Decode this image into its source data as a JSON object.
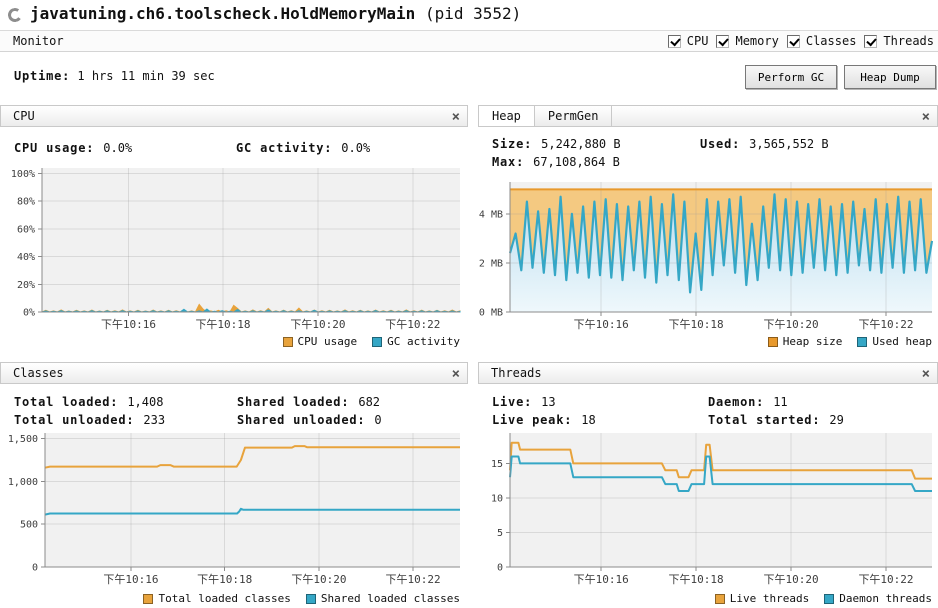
{
  "window": {
    "title": "javatuning.ch6.toolscheck.HoldMemoryMain",
    "pid": " (pid 3552)"
  },
  "ui": {
    "close_glyph": "×"
  },
  "monitor_tab": {
    "label": "Monitor",
    "checkboxes": [
      {
        "label": "CPU",
        "checked": true
      },
      {
        "label": "Memory",
        "checked": true
      },
      {
        "label": "Classes",
        "checked": true
      },
      {
        "label": "Threads",
        "checked": true
      }
    ]
  },
  "toolbar": {
    "uptime_label": "Uptime:",
    "uptime_value": " 1 hrs 11 min 39 sec",
    "perform_gc_label": "Perform GC",
    "heap_dump_label": "Heap Dump"
  },
  "panels": {
    "cpu": {
      "title": "CPU",
      "stats": [
        {
          "label": "CPU usage:",
          "value": "0.0%"
        },
        {
          "label": "GC activity:",
          "value": "0.0%"
        }
      ],
      "legend": [
        {
          "label": "CPU usage",
          "color": "#e8a33c"
        },
        {
          "label": "GC activity",
          "color": "#35a7c6"
        }
      ]
    },
    "heap": {
      "tabs": [
        "Heap",
        "PermGen"
      ],
      "active_tab": "Heap",
      "stats": [
        {
          "label": "Size:",
          "value": "5,242,880 B"
        },
        {
          "label": "Used:",
          "value": "3,565,552 B"
        },
        {
          "label": "Max:",
          "value": "67,108,864 B"
        }
      ],
      "legend": [
        {
          "label": "Heap size",
          "color": "#e8a33c"
        },
        {
          "label": "Used heap",
          "color": "#35a7c6"
        }
      ]
    },
    "classes": {
      "title": "Classes",
      "stats": [
        {
          "label": "Total loaded:",
          "value": "1,408"
        },
        {
          "label": "Shared loaded:",
          "value": "682"
        },
        {
          "label": "Total unloaded:",
          "value": "233"
        },
        {
          "label": "Shared unloaded:",
          "value": "0"
        }
      ],
      "legend": [
        {
          "label": "Total loaded classes",
          "color": "#e8a33c"
        },
        {
          "label": "Shared loaded classes",
          "color": "#35a7c6"
        }
      ]
    },
    "threads": {
      "title": "Threads",
      "stats": [
        {
          "label": "Live:",
          "value": "13"
        },
        {
          "label": "Daemon:",
          "value": "11"
        },
        {
          "label": "Live peak:",
          "value": "18"
        },
        {
          "label": "Total started:",
          "value": "29"
        }
      ],
      "legend": [
        {
          "label": "Live threads",
          "color": "#e8a33c"
        },
        {
          "label": "Daemon threads",
          "color": "#35a7c6"
        }
      ]
    }
  },
  "chart_data": [
    {
      "id": "cpu",
      "type": "area",
      "x_ticks": {
        "labels": [
          "下午10:16",
          "下午10:18",
          "下午10:20",
          "下午10:22"
        ],
        "pos": [
          0.207,
          0.433,
          0.66,
          0.887
        ]
      },
      "y_ticks": [
        {
          "label": "0%",
          "v": 0
        },
        {
          "label": "20%",
          "v": 20
        },
        {
          "label": "40%",
          "v": 40
        },
        {
          "label": "60%",
          "v": 60
        },
        {
          "label": "80%",
          "v": 80
        },
        {
          "label": "100%",
          "v": 100
        }
      ],
      "ylim": [
        0,
        104
      ],
      "series": [
        {
          "name": "CPU usage",
          "color": "#e8a33c",
          "values": [
            0,
            1.2,
            0,
            0.8,
            0,
            1.5,
            0,
            0.7,
            0,
            1.2,
            0,
            0.8,
            0,
            1.4,
            0,
            0.7,
            0,
            1.2,
            0,
            0.9,
            0,
            1.5,
            0,
            0.8,
            0,
            1.2,
            0,
            0.7,
            0,
            1.4,
            0,
            0.8,
            0,
            1.2,
            0,
            0.9,
            0,
            1.5,
            0,
            0.8,
            0,
            5.5,
            2,
            0,
            0.8,
            0,
            1.2,
            0,
            0.9,
            0,
            4.8,
            2.5,
            0,
            0.8,
            0,
            1.5,
            0,
            0.9,
            0,
            2.6,
            0,
            0.8,
            0,
            1.3,
            0,
            0.9,
            0,
            2.8,
            0,
            0.8,
            0,
            1.4,
            0,
            0.9,
            0,
            1.2,
            0,
            0.8,
            0,
            1.5,
            0,
            0.9,
            0,
            1.2,
            0,
            0.8,
            0,
            1.4,
            0,
            0.9,
            0,
            1.2,
            0,
            0.8,
            0,
            1.5,
            0,
            0.9,
            0,
            1.3,
            0,
            0.8,
            0,
            1.2,
            0,
            0.9,
            0,
            1.4,
            0,
            0.8
          ]
        },
        {
          "name": "GC activity",
          "color": "#35a7c6",
          "values": [
            0,
            0.8,
            0,
            0.5,
            0,
            1,
            0,
            0.6,
            0,
            0.8,
            0,
            0.5,
            0,
            1,
            0,
            0.6,
            0,
            0.9,
            0,
            0.5,
            0,
            1,
            0,
            0.6,
            0,
            0.8,
            0,
            0.5,
            0,
            1,
            0,
            0.6,
            0,
            0.9,
            0,
            0.5,
            0,
            2,
            0,
            0.6,
            0,
            0.8,
            0,
            2.2,
            0,
            0.5,
            0,
            1,
            0,
            0.6,
            0,
            1.8,
            0,
            0.5,
            0,
            0.9,
            0,
            0.6,
            0,
            1.5,
            0,
            0.5,
            0,
            1,
            0,
            0.6,
            0,
            0.9,
            0,
            0.5,
            0,
            1.2,
            0,
            0.6,
            0,
            0.8,
            0,
            0.5,
            0,
            1,
            0,
            0.6,
            0,
            0.9,
            0,
            0.5,
            0,
            1.1,
            0,
            0.6,
            0,
            0.8,
            0,
            0.5,
            0,
            1,
            0,
            0.6,
            0,
            0.9,
            0,
            0.5,
            0,
            1,
            0,
            0.6,
            0,
            0.8,
            0,
            0.5
          ]
        }
      ]
    },
    {
      "id": "heap",
      "type": "area-line",
      "x_ticks": {
        "labels": [
          "下午10:16",
          "下午10:18",
          "下午10:20",
          "下午10:22"
        ],
        "pos": [
          0.216,
          0.441,
          0.666,
          0.891
        ]
      },
      "y_ticks": [
        {
          "label": "0 MB",
          "v": 0
        },
        {
          "label": "2 MB",
          "v": 2
        },
        {
          "label": "4 MB",
          "v": 4
        }
      ],
      "ylim": [
        0,
        5.3
      ],
      "series": [
        {
          "name": "Heap size",
          "color": "#e8992c",
          "value": 5.0
        },
        {
          "name": "Used heap",
          "color": "#35a7c6",
          "values": [
            2.4,
            3.2,
            1.7,
            4.5,
            1.8,
            4.1,
            1.6,
            4.2,
            1.5,
            4.7,
            1.3,
            4.0,
            1.6,
            4.3,
            1.4,
            4.5,
            1.5,
            4.6,
            1.4,
            4.4,
            1.3,
            4.3,
            1.7,
            4.5,
            1.4,
            4.7,
            1.2,
            4.4,
            1.5,
            4.8,
            1.3,
            4.5,
            0.8,
            3.2,
            0.9,
            4.6,
            1.5,
            4.5,
            1.9,
            4.6,
            1.6,
            4.7,
            1.1,
            3.6,
            1.3,
            4.3,
            1.8,
            4.8,
            1.7,
            4.6,
            1.5,
            4.5,
            1.6,
            4.4,
            1.8,
            4.6,
            1.7,
            4.3,
            1.5,
            4.4,
            1.6,
            4.5,
            1.9,
            4.2,
            1.7,
            4.6,
            1.6,
            4.4,
            1.8,
            4.7,
            1.6,
            4.5,
            1.7,
            4.6,
            1.6,
            2.9
          ]
        }
      ]
    },
    {
      "id": "classes",
      "type": "line",
      "x_ticks": {
        "labels": [
          "下午10:16",
          "下午10:18",
          "下午10:20",
          "下午10:22"
        ],
        "pos": [
          0.207,
          0.433,
          0.66,
          0.887
        ]
      },
      "y_ticks": [
        {
          "label": "0",
          "v": 0
        },
        {
          "label": "500",
          "v": 500
        },
        {
          "label": "1,000",
          "v": 1000
        },
        {
          "label": "1,500",
          "v": 1500
        }
      ],
      "ylim": [
        0,
        1565
      ],
      "series": [
        {
          "name": "Total loaded classes",
          "color": "#e8a33c",
          "points": [
            [
              0,
              1160
            ],
            [
              0.012,
              1172
            ],
            [
              0.27,
              1172
            ],
            [
              0.278,
              1190
            ],
            [
              0.302,
              1190
            ],
            [
              0.31,
              1172
            ],
            [
              0.462,
              1172
            ],
            [
              0.472,
              1250
            ],
            [
              0.482,
              1395
            ],
            [
              0.595,
              1395
            ],
            [
              0.602,
              1412
            ],
            [
              0.625,
              1412
            ],
            [
              0.632,
              1398
            ],
            [
              1,
              1398
            ]
          ]
        },
        {
          "name": "Shared loaded classes",
          "color": "#35a7c6",
          "points": [
            [
              0,
              612
            ],
            [
              0.012,
              625
            ],
            [
              0.463,
              625
            ],
            [
              0.468,
              648
            ],
            [
              0.472,
              680
            ],
            [
              0.478,
              668
            ],
            [
              1,
              668
            ]
          ]
        }
      ]
    },
    {
      "id": "threads",
      "type": "line",
      "x_ticks": {
        "labels": [
          "下午10:16",
          "下午10:18",
          "下午10:20",
          "下午10:22"
        ],
        "pos": [
          0.216,
          0.441,
          0.666,
          0.891
        ]
      },
      "y_ticks": [
        {
          "label": "0",
          "v": 0
        },
        {
          "label": "5",
          "v": 5
        },
        {
          "label": "10",
          "v": 10
        },
        {
          "label": "15",
          "v": 15
        }
      ],
      "ylim": [
        0,
        19.4
      ],
      "series": [
        {
          "name": "Live threads",
          "color": "#e8a33c",
          "points": [
            [
              0,
              14
            ],
            [
              0.004,
              18
            ],
            [
              0.02,
              18
            ],
            [
              0.024,
              17
            ],
            [
              0.143,
              17
            ],
            [
              0.15,
              15
            ],
            [
              0.36,
              15
            ],
            [
              0.368,
              14
            ],
            [
              0.395,
              14
            ],
            [
              0.4,
              13
            ],
            [
              0.423,
              13
            ],
            [
              0.43,
              14
            ],
            [
              0.46,
              14
            ],
            [
              0.465,
              17.7
            ],
            [
              0.473,
              17.7
            ],
            [
              0.48,
              14
            ],
            [
              0.952,
              14
            ],
            [
              0.96,
              12.8
            ],
            [
              1,
              12.8
            ]
          ]
        },
        {
          "name": "Daemon threads",
          "color": "#35a7c6",
          "points": [
            [
              0,
              13
            ],
            [
              0.004,
              16
            ],
            [
              0.02,
              16
            ],
            [
              0.024,
              15
            ],
            [
              0.143,
              15
            ],
            [
              0.15,
              13
            ],
            [
              0.36,
              13
            ],
            [
              0.368,
              12
            ],
            [
              0.395,
              12
            ],
            [
              0.4,
              11
            ],
            [
              0.423,
              11
            ],
            [
              0.43,
              12
            ],
            [
              0.46,
              12
            ],
            [
              0.465,
              16
            ],
            [
              0.473,
              16
            ],
            [
              0.48,
              12
            ],
            [
              0.952,
              12
            ],
            [
              0.96,
              11
            ],
            [
              1,
              11
            ]
          ]
        }
      ]
    }
  ]
}
